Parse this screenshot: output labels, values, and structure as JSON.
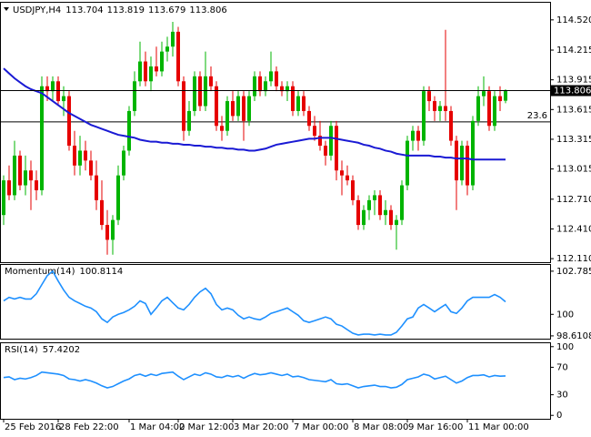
{
  "chart_data": [
    {
      "type": "candlestick",
      "title": "USDJPY,H4",
      "categories": [
        "25 Feb 2016",
        null,
        null,
        null,
        null,
        null,
        null,
        null,
        null,
        null,
        "28 Feb 22:00",
        null,
        null,
        null,
        null,
        null,
        null,
        null,
        null,
        null,
        null,
        null,
        null,
        "1 Mar 04:00",
        null,
        null,
        null,
        null,
        null,
        null,
        null,
        null,
        "2 Mar 12:00",
        null,
        null,
        null,
        null,
        null,
        null,
        null,
        null,
        null,
        "3 Mar 20:00",
        null,
        null,
        null,
        null,
        null,
        null,
        null,
        null,
        null,
        null,
        "7 Mar 00:00",
        null,
        null,
        null,
        null,
        null,
        null,
        null,
        null,
        null,
        null,
        "8 Mar 08:00",
        null,
        null,
        null,
        null,
        null,
        null,
        null,
        null,
        null,
        "9 Mar 16:00",
        null,
        null,
        null,
        null,
        null,
        null,
        null,
        null,
        null,
        null,
        "11 Mar 00:00",
        null,
        null,
        null,
        null,
        null,
        null,
        null
      ],
      "ohlc": [
        [
          112.55,
          112.95,
          112.45,
          112.9
        ],
        [
          112.9,
          113.05,
          112.7,
          112.75
        ],
        [
          112.75,
          113.3,
          112.7,
          113.15
        ],
        [
          113.15,
          113.2,
          112.8,
          112.85
        ],
        [
          112.85,
          113.15,
          112.75,
          113.0
        ],
        [
          113.0,
          113.1,
          112.6,
          112.9
        ],
        [
          112.9,
          113.0,
          112.7,
          112.8
        ],
        [
          112.8,
          113.95,
          112.75,
          113.85
        ],
        [
          113.85,
          113.95,
          113.7,
          113.8
        ],
        [
          113.8,
          113.95,
          113.7,
          113.9
        ],
        [
          113.9,
          113.95,
          113.65,
          113.7
        ],
        [
          113.7,
          113.85,
          113.55,
          113.75
        ],
        [
          113.75,
          113.8,
          113.2,
          113.25
        ],
        [
          113.25,
          113.4,
          112.95,
          113.05
        ],
        [
          113.05,
          113.35,
          112.95,
          113.2
        ],
        [
          113.2,
          113.3,
          113.0,
          113.1
        ],
        [
          113.1,
          113.2,
          112.9,
          112.95
        ],
        [
          112.95,
          113.1,
          112.6,
          112.7
        ],
        [
          112.7,
          112.9,
          112.4,
          112.45
        ],
        [
          112.45,
          112.6,
          112.15,
          112.3
        ],
        [
          112.3,
          112.55,
          112.15,
          112.5
        ],
        [
          112.5,
          113.05,
          112.45,
          112.95
        ],
        [
          112.95,
          113.25,
          112.9,
          113.2
        ],
        [
          113.2,
          113.65,
          113.15,
          113.6
        ],
        [
          113.6,
          114.0,
          113.55,
          113.9
        ],
        [
          113.9,
          114.3,
          113.85,
          114.1
        ],
        [
          114.1,
          114.2,
          113.85,
          113.9
        ],
        [
          113.9,
          114.15,
          113.8,
          114.05
        ],
        [
          114.05,
          114.25,
          113.95,
          114.0
        ],
        [
          114.0,
          114.3,
          113.95,
          114.2
        ],
        [
          114.2,
          114.35,
          114.1,
          114.25
        ],
        [
          114.25,
          114.5,
          114.15,
          114.4
        ],
        [
          114.4,
          114.45,
          113.85,
          113.9
        ],
        [
          113.9,
          113.95,
          113.3,
          113.4
        ],
        [
          113.4,
          113.7,
          113.35,
          113.6
        ],
        [
          113.6,
          114.0,
          113.55,
          113.95
        ],
        [
          113.95,
          114.0,
          113.6,
          113.65
        ],
        [
          113.65,
          114.2,
          113.6,
          113.95
        ],
        [
          113.95,
          114.05,
          113.8,
          113.85
        ],
        [
          113.85,
          113.9,
          113.4,
          113.45
        ],
        [
          113.45,
          113.55,
          113.3,
          113.4
        ],
        [
          113.4,
          113.75,
          113.35,
          113.7
        ],
        [
          113.7,
          113.8,
          113.5,
          113.55
        ],
        [
          113.55,
          113.8,
          113.5,
          113.75
        ],
        [
          113.75,
          113.8,
          113.3,
          113.5
        ],
        [
          113.5,
          113.8,
          113.45,
          113.75
        ],
        [
          113.75,
          114.0,
          113.7,
          113.95
        ],
        [
          113.95,
          114.0,
          113.75,
          113.8
        ],
        [
          113.8,
          113.95,
          113.75,
          113.9
        ],
        [
          113.9,
          114.2,
          113.85,
          114.0
        ],
        [
          114.0,
          114.05,
          113.8,
          113.85
        ],
        [
          113.85,
          113.9,
          113.75,
          113.8
        ],
        [
          113.8,
          113.9,
          113.7,
          113.85
        ],
        [
          113.85,
          113.9,
          113.55,
          113.6
        ],
        [
          113.6,
          113.8,
          113.55,
          113.75
        ],
        [
          113.75,
          113.8,
          113.55,
          113.6
        ],
        [
          113.6,
          113.65,
          113.4,
          113.45
        ],
        [
          113.45,
          113.55,
          113.3,
          113.35
        ],
        [
          113.35,
          113.5,
          113.2,
          113.25
        ],
        [
          113.25,
          113.3,
          113.05,
          113.15
        ],
        [
          113.15,
          113.5,
          113.1,
          113.45
        ],
        [
          113.45,
          113.5,
          112.9,
          113.0
        ],
        [
          113.0,
          113.1,
          112.75,
          112.95
        ],
        [
          112.95,
          113.05,
          112.85,
          112.9
        ],
        [
          112.9,
          112.95,
          112.65,
          112.7
        ],
        [
          112.7,
          112.75,
          112.4,
          112.45
        ],
        [
          112.45,
          112.65,
          112.4,
          112.6
        ],
        [
          112.6,
          112.75,
          112.5,
          112.7
        ],
        [
          112.7,
          112.8,
          112.55,
          112.75
        ],
        [
          112.75,
          112.8,
          112.5,
          112.55
        ],
        [
          112.55,
          112.7,
          112.45,
          112.6
        ],
        [
          112.6,
          112.65,
          112.4,
          112.45
        ],
        [
          112.45,
          112.55,
          112.2,
          112.5
        ],
        [
          112.5,
          112.9,
          112.45,
          112.85
        ],
        [
          112.85,
          113.35,
          112.8,
          113.3
        ],
        [
          113.3,
          113.45,
          113.2,
          113.4
        ],
        [
          113.4,
          113.45,
          113.2,
          113.3
        ],
        [
          113.3,
          113.85,
          113.25,
          113.8
        ],
        [
          113.8,
          113.85,
          113.6,
          113.7
        ],
        [
          113.7,
          113.75,
          113.5,
          113.6
        ],
        [
          113.6,
          113.7,
          113.5,
          113.65
        ],
        [
          113.65,
          114.42,
          113.5,
          113.6
        ],
        [
          113.6,
          113.65,
          113.25,
          113.3
        ],
        [
          113.3,
          113.35,
          112.6,
          112.9
        ],
        [
          112.9,
          113.3,
          112.85,
          113.25
        ],
        [
          113.25,
          113.3,
          112.75,
          112.85
        ],
        [
          112.85,
          113.55,
          112.8,
          113.5
        ],
        [
          113.5,
          113.85,
          113.45,
          113.75
        ],
        [
          113.75,
          113.95,
          113.65,
          113.8
        ],
        [
          113.8,
          113.85,
          113.4,
          113.45
        ],
        [
          113.45,
          113.8,
          113.4,
          113.75
        ],
        [
          113.75,
          113.85,
          113.6,
          113.7
        ],
        [
          113.704,
          113.819,
          113.679,
          113.806
        ]
      ],
      "up_color": "#00b400",
      "down_color": "#e60000",
      "ma": {
        "color": "#1a1ad4",
        "values": [
          114.03,
          113.98,
          113.93,
          113.89,
          113.85,
          113.82,
          113.8,
          113.78,
          113.74,
          113.7,
          113.66,
          113.62,
          113.58,
          113.55,
          113.52,
          113.49,
          113.46,
          113.44,
          113.42,
          113.4,
          113.38,
          113.36,
          113.35,
          113.34,
          113.33,
          113.31,
          113.3,
          113.29,
          113.29,
          113.28,
          113.28,
          113.27,
          113.27,
          113.26,
          113.26,
          113.25,
          113.25,
          113.24,
          113.24,
          113.23,
          113.23,
          113.22,
          113.22,
          113.21,
          113.21,
          113.2,
          113.2,
          113.21,
          113.22,
          113.24,
          113.26,
          113.27,
          113.28,
          113.29,
          113.3,
          113.31,
          113.32,
          113.32,
          113.33,
          113.33,
          113.33,
          113.32,
          113.31,
          113.3,
          113.29,
          113.28,
          113.26,
          113.25,
          113.23,
          113.22,
          113.2,
          113.19,
          113.17,
          113.16,
          113.15,
          113.15,
          113.15,
          113.15,
          113.15,
          113.14,
          113.14,
          113.13,
          113.13,
          113.12,
          113.12,
          113.12,
          113.11,
          113.11,
          113.11,
          113.11,
          113.11,
          113.11,
          113.11
        ]
      },
      "levels": [
        {
          "label": "23.6",
          "value": 113.49
        }
      ],
      "ylim": [
        112.074,
        114.693
      ],
      "yticks": [
        {
          "value": 114.52,
          "label": "114.520"
        },
        114.215,
        113.915,
        113.615,
        113.315,
        113.015,
        {
          "value": 112.71,
          "label": "112.710"
        },
        {
          "value": 112.41,
          "label": "112.410"
        },
        {
          "value": 112.11,
          "label": "112.110"
        }
      ]
    },
    {
      "type": "line",
      "title": "Momentum(14)",
      "color": "#1e90ff",
      "values": [
        100.87,
        101.1,
        100.99,
        101.1,
        100.99,
        100.99,
        101.33,
        101.92,
        102.5,
        102.79,
        102.15,
        101.57,
        101.1,
        100.87,
        100.7,
        100.52,
        100.41,
        100.17,
        99.71,
        99.48,
        99.83,
        100.0,
        100.12,
        100.29,
        100.52,
        100.87,
        100.7,
        100.0,
        100.41,
        100.87,
        101.1,
        100.75,
        100.41,
        100.29,
        100.64,
        101.1,
        101.45,
        101.68,
        101.33,
        100.64,
        100.29,
        100.41,
        100.29,
        99.94,
        99.71,
        99.83,
        99.71,
        99.65,
        99.83,
        100.06,
        100.17,
        100.29,
        100.41,
        100.17,
        99.94,
        99.59,
        99.48,
        99.59,
        99.71,
        99.83,
        99.71,
        99.36,
        99.25,
        99.01,
        98.78,
        98.67,
        98.72,
        98.72,
        98.67,
        98.72,
        98.67,
        98.67,
        98.84,
        99.25,
        99.71,
        99.83,
        100.41,
        100.64,
        100.41,
        100.17,
        100.41,
        100.64,
        100.17,
        100.06,
        100.41,
        100.87,
        101.1,
        101.1,
        101.1,
        101.1,
        101.28,
        101.1,
        100.8114
      ],
      "ylim": [
        98.43,
        103.19
      ],
      "yticks": [
        102.7859,
        100,
        98.6108
      ]
    },
    {
      "type": "line",
      "title": "RSI(14)",
      "color": "#1e90ff",
      "values": [
        55,
        56,
        52,
        54,
        53,
        55,
        58,
        63,
        62,
        61,
        60,
        58,
        53,
        52,
        50,
        52,
        50,
        47,
        43,
        40,
        42,
        46,
        50,
        53,
        58,
        60,
        57,
        60,
        58,
        61,
        62,
        63,
        57,
        52,
        56,
        60,
        58,
        62,
        60,
        56,
        55,
        58,
        56,
        58,
        54,
        58,
        61,
        59,
        60,
        62,
        60,
        58,
        60,
        56,
        57,
        55,
        52,
        51,
        50,
        49,
        52,
        46,
        45,
        46,
        43,
        40,
        42,
        43,
        44,
        42,
        42,
        40,
        41,
        45,
        52,
        54,
        56,
        60,
        58,
        53,
        55,
        57,
        52,
        47,
        50,
        55,
        58,
        58,
        59,
        56,
        58,
        57,
        57.4202
      ],
      "ylim": [
        -5,
        105
      ],
      "yticks": [
        100,
        70,
        30,
        0
      ]
    }
  ]
}
